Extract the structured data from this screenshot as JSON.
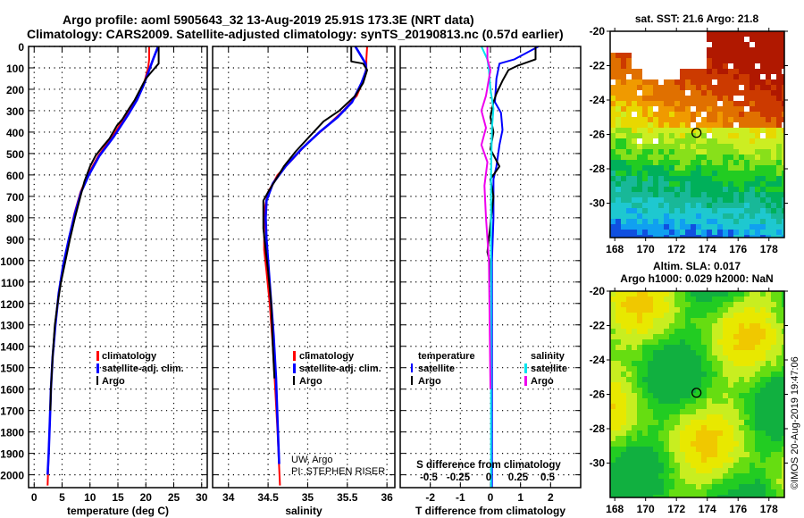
{
  "title_line1": "Argo profile: aoml 5905643_32 13-Aug-2019 25.91S 173.3E (NRT data)",
  "title_line2": "Climatology: CARS2009. Satellite-adjusted climatology: synTS_20190813.nc (0.57d earlier)",
  "colors": {
    "climatology": "#ff0000",
    "satellite": "#0000ff",
    "argo": "#000000",
    "s_satellite": "#00e5ee",
    "s_argo": "#ee00ee"
  },
  "chart_data": [
    {
      "type": "line",
      "name": "temperature-profile",
      "xlabel": "temperature (deg C)",
      "ylabel": "",
      "xlim": [
        -1,
        31
      ],
      "ylim": [
        2060,
        0
      ],
      "xticks": [
        0,
        5,
        10,
        15,
        20,
        25,
        30
      ],
      "yticks": [
        0,
        100,
        200,
        300,
        400,
        500,
        600,
        700,
        800,
        900,
        1000,
        1100,
        1200,
        1300,
        1400,
        1500,
        1600,
        1700,
        1800,
        1900,
        2000
      ],
      "grid": true,
      "legend": {
        "position": "lower-right",
        "entries": [
          "climatology",
          "satellite-adj. clim.",
          "Argo"
        ]
      },
      "series": [
        {
          "name": "climatology",
          "color": "#ff0000",
          "points": [
            [
              20.6,
              0
            ],
            [
              20.6,
              60
            ],
            [
              20.4,
              100
            ],
            [
              19.8,
              160
            ],
            [
              18.5,
              230
            ],
            [
              16.5,
              320
            ],
            [
              14.0,
              420
            ],
            [
              11.5,
              510
            ],
            [
              9.6,
              600
            ],
            [
              8.3,
              680
            ],
            [
              7.2,
              780
            ],
            [
              6.2,
              900
            ],
            [
              5.2,
              1020
            ],
            [
              4.4,
              1150
            ],
            [
              3.8,
              1300
            ],
            [
              3.3,
              1450
            ],
            [
              3.0,
              1600
            ],
            [
              2.8,
              1750
            ],
            [
              2.6,
              1900
            ],
            [
              2.4,
              2050
            ]
          ]
        },
        {
          "name": "satellite-adj. clim.",
          "color": "#0000ff",
          "points": [
            [
              22.2,
              0
            ],
            [
              21.3,
              60
            ],
            [
              20.6,
              110
            ],
            [
              19.6,
              180
            ],
            [
              18.4,
              250
            ],
            [
              16.8,
              320
            ],
            [
              14.3,
              420
            ],
            [
              11.7,
              510
            ],
            [
              9.8,
              600
            ],
            [
              8.4,
              680
            ],
            [
              7.3,
              780
            ],
            [
              6.2,
              900
            ],
            [
              5.2,
              1020
            ],
            [
              4.4,
              1150
            ],
            [
              3.8,
              1300
            ],
            [
              3.3,
              1450
            ],
            [
              3.0,
              1600
            ],
            [
              2.8,
              1750
            ],
            [
              2.6,
              1900
            ],
            [
              2.4,
              2000
            ]
          ]
        },
        {
          "name": "Argo",
          "color": "#000000",
          "points": [
            [
              22.3,
              0
            ],
            [
              22.3,
              80
            ],
            [
              21.3,
              110
            ],
            [
              20.0,
              150
            ],
            [
              19.0,
              200
            ],
            [
              18.0,
              250
            ],
            [
              17.0,
              290
            ],
            [
              15.8,
              340
            ],
            [
              14.8,
              370
            ],
            [
              13.5,
              430
            ],
            [
              12.2,
              470
            ],
            [
              11.0,
              510
            ],
            [
              10.0,
              560
            ],
            [
              9.0,
              630
            ],
            [
              8.3,
              700
            ],
            [
              7.3,
              800
            ],
            [
              6.4,
              900
            ],
            [
              5.6,
              1000
            ],
            [
              4.8,
              1100
            ],
            [
              4.2,
              1200
            ],
            [
              3.7,
              1300
            ],
            [
              3.3,
              1450
            ],
            [
              3.0,
              1600
            ],
            [
              2.9,
              1700
            ]
          ]
        }
      ]
    },
    {
      "type": "line",
      "name": "salinity-profile",
      "xlabel": "salinity",
      "xlim": [
        33.8,
        36.1
      ],
      "ylim": [
        2060,
        0
      ],
      "xticks": [
        34,
        34.5,
        35,
        35.5,
        36
      ],
      "grid": true,
      "legend": {
        "position": "lower-right",
        "entries": [
          "climatology",
          "satellite-adj. clim.",
          "Argo"
        ]
      },
      "annotation": [
        "UW, Argo",
        "PI: STEPHEN RISER"
      ],
      "series": [
        {
          "name": "climatology",
          "color": "#ff0000",
          "points": [
            [
              35.75,
              0
            ],
            [
              35.74,
              60
            ],
            [
              35.74,
              100
            ],
            [
              35.7,
              160
            ],
            [
              35.62,
              230
            ],
            [
              35.45,
              300
            ],
            [
              35.22,
              380
            ],
            [
              35.0,
              450
            ],
            [
              34.8,
              530
            ],
            [
              34.62,
              600
            ],
            [
              34.5,
              680
            ],
            [
              34.46,
              750
            ],
            [
              34.45,
              850
            ],
            [
              34.45,
              950
            ],
            [
              34.48,
              1050
            ],
            [
              34.52,
              1200
            ],
            [
              34.56,
              1400
            ],
            [
              34.59,
              1600
            ],
            [
              34.62,
              1800
            ],
            [
              34.65,
              2050
            ]
          ]
        },
        {
          "name": "satellite-adj. clim.",
          "color": "#0000ff",
          "points": [
            [
              35.6,
              0
            ],
            [
              35.65,
              30
            ],
            [
              35.73,
              80
            ],
            [
              35.74,
              110
            ],
            [
              35.68,
              170
            ],
            [
              35.56,
              260
            ],
            [
              35.38,
              330
            ],
            [
              35.15,
              400
            ],
            [
              34.92,
              480
            ],
            [
              34.72,
              560
            ],
            [
              34.56,
              640
            ],
            [
              34.48,
              720
            ],
            [
              34.47,
              800
            ],
            [
              34.48,
              900
            ],
            [
              34.5,
              1000
            ],
            [
              34.53,
              1150
            ],
            [
              34.57,
              1350
            ],
            [
              34.6,
              1550
            ],
            [
              34.62,
              1750
            ],
            [
              34.64,
              1950
            ]
          ]
        },
        {
          "name": "Argo",
          "color": "#000000",
          "points": [
            [
              35.55,
              0
            ],
            [
              35.55,
              70
            ],
            [
              35.7,
              80
            ],
            [
              35.75,
              110
            ],
            [
              35.7,
              170
            ],
            [
              35.6,
              230
            ],
            [
              35.4,
              300
            ],
            [
              35.2,
              350
            ],
            [
              35.0,
              430
            ],
            [
              34.85,
              490
            ],
            [
              34.7,
              560
            ],
            [
              34.6,
              620
            ],
            [
              34.5,
              680
            ],
            [
              34.44,
              720
            ],
            [
              34.44,
              850
            ],
            [
              34.47,
              950
            ],
            [
              34.5,
              1050
            ],
            [
              34.54,
              1200
            ],
            [
              34.56,
              1400
            ],
            [
              34.58,
              1550
            ]
          ]
        }
      ]
    },
    {
      "type": "line",
      "name": "difference-profile",
      "xlabel": "T difference from climatology",
      "xlabel2": "S difference from climatology",
      "xlim": [
        -3,
        3
      ],
      "ylim": [
        2060,
        0
      ],
      "xticks": [
        -2,
        -1,
        0,
        1,
        2
      ],
      "xticks2": [
        "-0.5",
        "-0.25",
        "0",
        "0.25",
        "0.5"
      ],
      "grid": true,
      "legend": {
        "temperature": [
          "satellite",
          "Argo"
        ],
        "salinity": [
          "satellite",
          "Argo"
        ]
      },
      "series": [
        {
          "name": "temperature satellite",
          "color": "#0000ff",
          "points": [
            [
              1.6,
              0
            ],
            [
              0.8,
              60
            ],
            [
              0.3,
              80
            ],
            [
              0.2,
              150
            ],
            [
              0.15,
              260
            ],
            [
              0.35,
              310
            ],
            [
              0.4,
              390
            ],
            [
              0.3,
              460
            ],
            [
              0.2,
              560
            ],
            [
              0.1,
              620
            ],
            [
              0.1,
              800
            ],
            [
              0.05,
              1000
            ],
            [
              0.05,
              2060
            ]
          ]
        },
        {
          "name": "temperature Argo",
          "color": "#000000",
          "points": [
            [
              1.5,
              0
            ],
            [
              1.5,
              60
            ],
            [
              0.9,
              90
            ],
            [
              0.6,
              110
            ],
            [
              0.4,
              160
            ],
            [
              0.2,
              220
            ],
            [
              0.1,
              260
            ],
            [
              0.0,
              330
            ],
            [
              0.1,
              400
            ],
            [
              0.0,
              480
            ],
            [
              0.3,
              560
            ],
            [
              0.0,
              620
            ],
            [
              0.1,
              700
            ],
            [
              -0.1,
              960
            ],
            [
              0.0,
              1020
            ],
            [
              0.0,
              1100
            ]
          ]
        },
        {
          "name": "salinity satellite",
          "color": "#00e5ee",
          "points": [
            [
              -0.3,
              0
            ],
            [
              -0.1,
              60
            ],
            [
              -0.05,
              110
            ],
            [
              0.0,
              200
            ],
            [
              0.1,
              290
            ],
            [
              0.05,
              380
            ],
            [
              0.02,
              600
            ],
            [
              0.02,
              1000
            ],
            [
              0.02,
              2060
            ]
          ]
        },
        {
          "name": "salinity Argo",
          "color": "#ee00ee",
          "points": [
            [
              -0.1,
              0
            ],
            [
              -0.1,
              60
            ],
            [
              0.0,
              110
            ],
            [
              -0.15,
              230
            ],
            [
              -0.3,
              300
            ],
            [
              -0.15,
              380
            ],
            [
              -0.3,
              460
            ],
            [
              -0.1,
              540
            ],
            [
              -0.2,
              650
            ],
            [
              -0.15,
              800
            ],
            [
              -0.05,
              1000
            ],
            [
              0.0,
              1600
            ]
          ]
        }
      ]
    },
    {
      "type": "heatmap",
      "name": "sst-map",
      "title": "sat. SST: 21.6 Argo: 21.8",
      "xlim": [
        167.7,
        179
      ],
      "ylim": [
        -32,
        -20
      ],
      "xticks": [
        168,
        170,
        172,
        174,
        176,
        178
      ],
      "yticks": [
        -20,
        -22,
        -24,
        -26,
        -28,
        -30
      ],
      "marker": {
        "lon": 173.3,
        "lat": -25.91
      }
    },
    {
      "type": "heatmap",
      "name": "sla-map",
      "title_line1": "Altim. SLA: 0.017",
      "title_line2": "Argo h1000: 0.029 h2000: NaN",
      "xlim": [
        167.7,
        179
      ],
      "ylim": [
        -32,
        -20
      ],
      "xticks": [
        168,
        170,
        172,
        174,
        176,
        178
      ],
      "yticks": [
        -20,
        -22,
        -24,
        -26,
        -28,
        -30
      ],
      "marker": {
        "lon": 173.3,
        "lat": -25.91
      }
    }
  ],
  "labels": {
    "legend_climatology": "climatology",
    "legend_satellite": "satellite-adj. clim.",
    "legend_argo": "Argo",
    "diff_temperature": "temperature",
    "diff_salinity": "salinity",
    "diff_satellite": "satellite",
    "diff_argo": "Argo",
    "credit1": "UW, Argo",
    "credit2": "PI: STEPHEN RISER",
    "copyright": "©IMOS 20-Aug-2019 19:47:06"
  }
}
